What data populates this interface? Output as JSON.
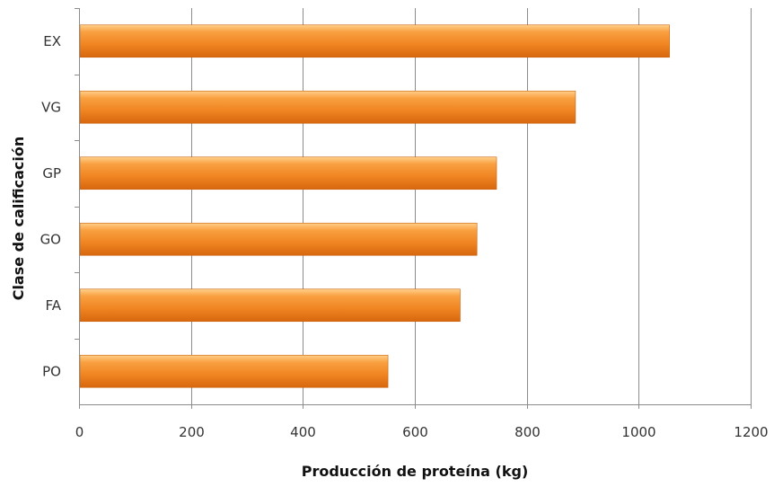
{
  "chart_data": {
    "type": "bar",
    "orientation": "horizontal",
    "categories": [
      "EX",
      "VG",
      "GP",
      "GO",
      "FA",
      "PO"
    ],
    "values": [
      1055,
      887,
      746,
      711,
      681,
      552
    ],
    "xlabel": "Producción de proteína (kg)",
    "ylabel": "Clase de calificación",
    "xlim": [
      0,
      1200
    ],
    "xticks": [
      0,
      200,
      400,
      600,
      800,
      1000,
      1200
    ],
    "xtick_labels": [
      "0",
      "200",
      "400",
      "600",
      "800",
      "1000",
      "1200"
    ],
    "grid": "vertical",
    "legend": "none",
    "bar_color": "#F28C28"
  }
}
